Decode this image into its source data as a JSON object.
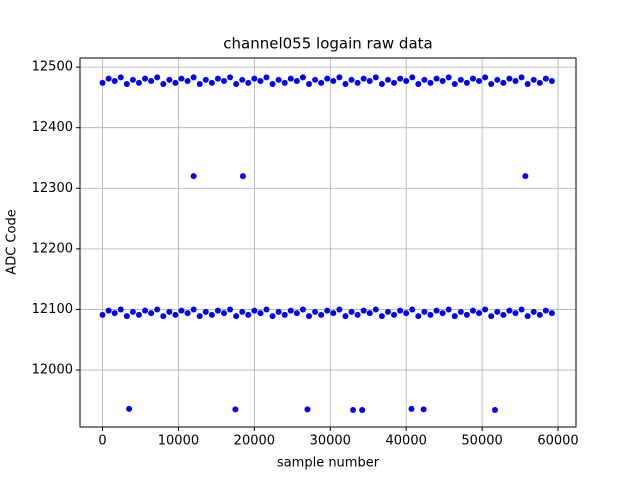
{
  "chart_data": {
    "type": "scatter",
    "title": "channel055 logain raw data",
    "x_label": "sample number",
    "y_label": "ADC Code",
    "xlim": [
      -2970,
      62370
    ],
    "ylim": [
      11906,
      12515
    ],
    "xticks": [
      0,
      10000,
      20000,
      30000,
      40000,
      50000,
      60000
    ],
    "yticks": [
      12000,
      12100,
      12200,
      12300,
      12400,
      12500
    ],
    "grid": true,
    "series": [
      {
        "color": "#0000ff",
        "x": [
          0,
          800,
          1600,
          2400,
          3200,
          4000,
          4800,
          5600,
          6400,
          7200,
          8000,
          8800,
          9600,
          10400,
          11200,
          12000,
          12800,
          13600,
          14400,
          15200,
          16000,
          16800,
          17600,
          18400,
          19200,
          20000,
          20800,
          21600,
          22400,
          23200,
          24000,
          24800,
          25600,
          26400,
          27200,
          28000,
          28800,
          29600,
          30400,
          31200,
          32000,
          32800,
          33600,
          34400,
          35200,
          36000,
          36800,
          37600,
          38400,
          39200,
          40000,
          40800,
          41600,
          42400,
          43200,
          44000,
          44800,
          45600,
          46400,
          47200,
          48000,
          48800,
          49600,
          50400,
          51200,
          52000,
          52800,
          53600,
          54400,
          55200,
          56000,
          56800,
          57600,
          58400,
          59200
        ],
        "y": [
          12474,
          12481,
          12477,
          12483,
          12472,
          12479,
          12474,
          12481,
          12477,
          12483,
          12472,
          12479,
          12474,
          12481,
          12477,
          12483,
          12472,
          12479,
          12474,
          12481,
          12477,
          12483,
          12472,
          12479,
          12474,
          12481,
          12477,
          12483,
          12472,
          12479,
          12474,
          12481,
          12477,
          12483,
          12472,
          12479,
          12474,
          12481,
          12477,
          12483,
          12472,
          12479,
          12474,
          12481,
          12477,
          12483,
          12472,
          12479,
          12474,
          12481,
          12477,
          12483,
          12472,
          12479,
          12474,
          12481,
          12477,
          12483,
          12472,
          12479,
          12474,
          12481,
          12477,
          12483,
          12472,
          12479,
          12474,
          12481,
          12477,
          12483,
          12472,
          12479,
          12474,
          12481,
          12477
        ]
      },
      {
        "color": "#0000ff",
        "x": [
          0,
          800,
          1600,
          2400,
          3200,
          4000,
          4800,
          5600,
          6400,
          7200,
          8000,
          8800,
          9600,
          10400,
          11200,
          12000,
          12800,
          13600,
          14400,
          15200,
          16000,
          16800,
          17600,
          18400,
          19200,
          20000,
          20800,
          21600,
          22400,
          23200,
          24000,
          24800,
          25600,
          26400,
          27200,
          28000,
          28800,
          29600,
          30400,
          31200,
          32000,
          32800,
          33600,
          34400,
          35200,
          36000,
          36800,
          37600,
          38400,
          39200,
          40000,
          40800,
          41600,
          42400,
          43200,
          44000,
          44800,
          45600,
          46400,
          47200,
          48000,
          48800,
          49600,
          50400,
          51200,
          52000,
          52800,
          53600,
          54400,
          55200,
          56000,
          56800,
          57600,
          58400,
          59200
        ],
        "y": [
          12091,
          12098,
          12094,
          12100,
          12089,
          12096,
          12091,
          12098,
          12094,
          12100,
          12089,
          12096,
          12091,
          12098,
          12094,
          12100,
          12089,
          12096,
          12091,
          12098,
          12094,
          12100,
          12089,
          12096,
          12091,
          12098,
          12094,
          12100,
          12089,
          12096,
          12091,
          12098,
          12094,
          12100,
          12089,
          12096,
          12091,
          12098,
          12094,
          12100,
          12089,
          12096,
          12091,
          12098,
          12094,
          12100,
          12089,
          12096,
          12091,
          12098,
          12094,
          12100,
          12089,
          12096,
          12091,
          12098,
          12094,
          12100,
          12089,
          12096,
          12091,
          12098,
          12094,
          12100,
          12089,
          12096,
          12091,
          12098,
          12094,
          12100,
          12089,
          12096,
          12091,
          12098,
          12094
        ]
      },
      {
        "color": "#0000ff",
        "x": [
          12000,
          18500,
          55700,
          3500,
          17500,
          27000,
          33000,
          34200,
          40700,
          42300,
          51700
        ],
        "y": [
          12320,
          12320,
          12320,
          11936,
          11935,
          11935,
          11934,
          11934,
          11936,
          11935,
          11934
        ]
      }
    ]
  }
}
